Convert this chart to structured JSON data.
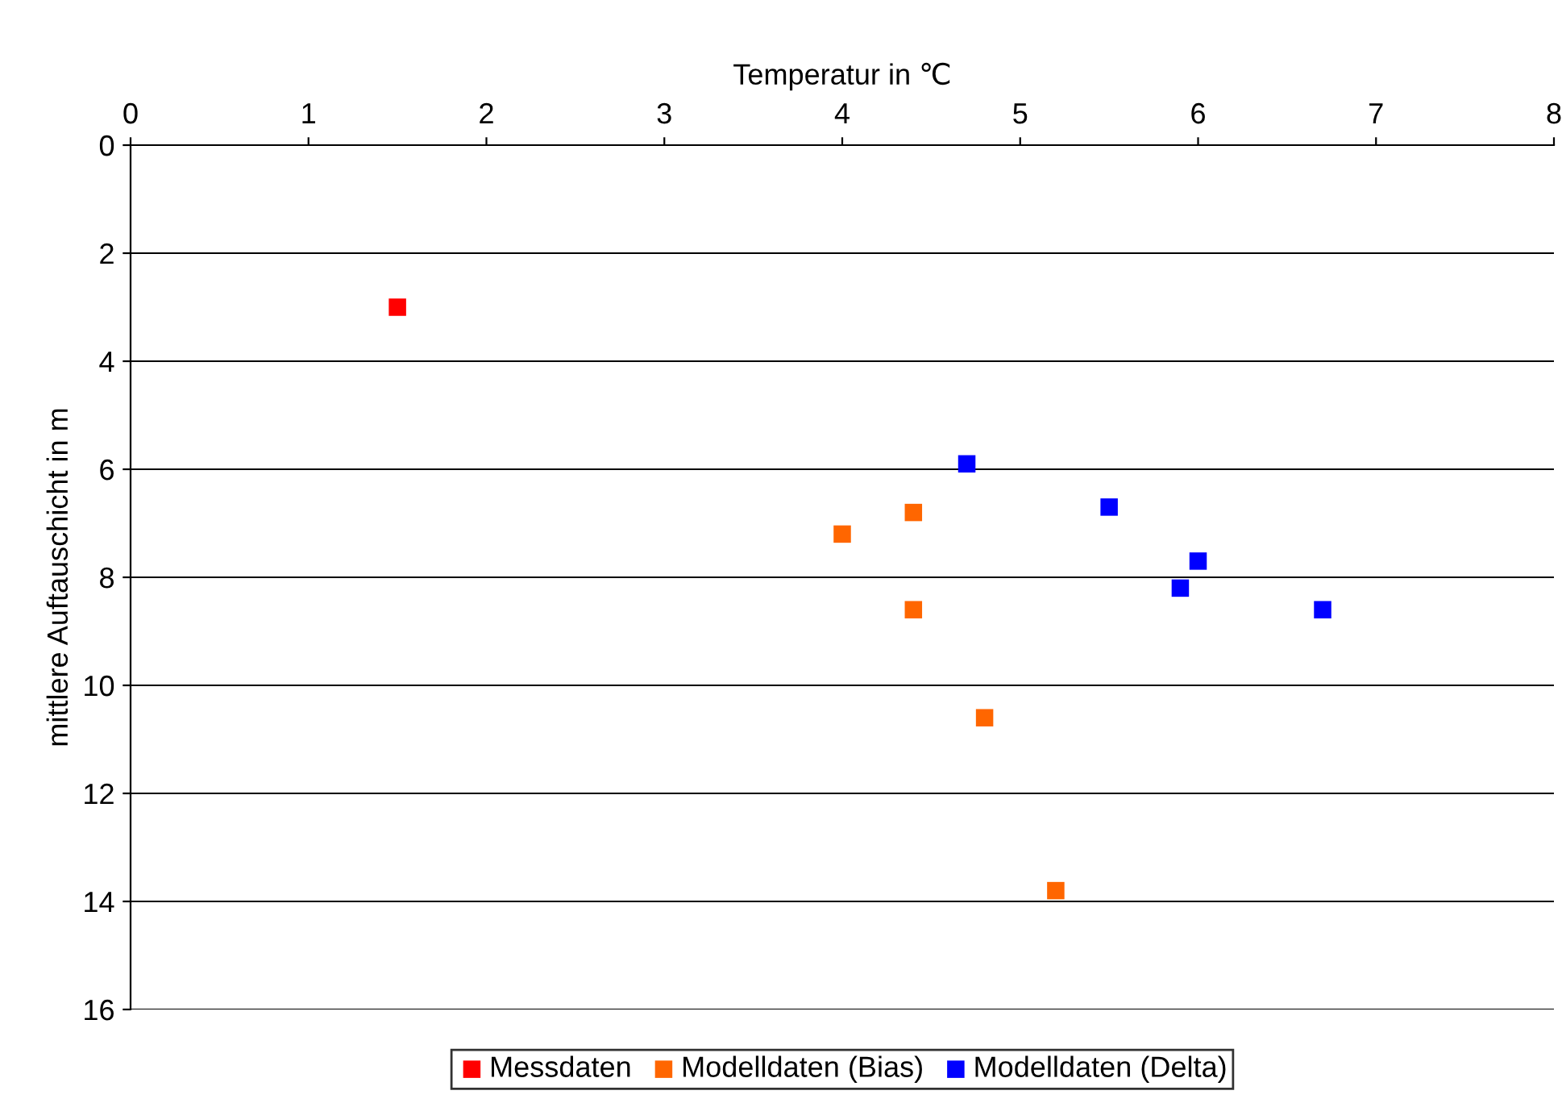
{
  "chart_data": {
    "type": "scatter",
    "xlabel": "Temperatur in ℃",
    "ylabel": "mittlere Auftauschicht in m",
    "xlim": [
      0,
      8
    ],
    "xticks": [
      0,
      1,
      2,
      3,
      4,
      5,
      6,
      7,
      8
    ],
    "ylim": [
      16,
      0
    ],
    "yticks": [
      0,
      2,
      4,
      6,
      8,
      10,
      12,
      14,
      16
    ],
    "grid": "y",
    "legend": "bottom",
    "marker": "square",
    "series": [
      {
        "name": "Messdaten",
        "color": "#ff0000",
        "x": [
          1.5
        ],
        "values": [
          3
        ]
      },
      {
        "name": "Modelldaten (Bias)",
        "color": "#ff6600",
        "x": [
          4.0,
          4.4,
          4.4,
          4.8,
          5.2
        ],
        "values": [
          7.2,
          6.8,
          8.6,
          10.6,
          13.8
        ]
      },
      {
        "name": "Modelldaten (Delta)",
        "color": "#0000ff",
        "x": [
          4.7,
          5.5,
          6.0,
          5.9,
          6.7
        ],
        "values": [
          5.9,
          6.7,
          7.7,
          8.2,
          8.6
        ]
      }
    ]
  }
}
